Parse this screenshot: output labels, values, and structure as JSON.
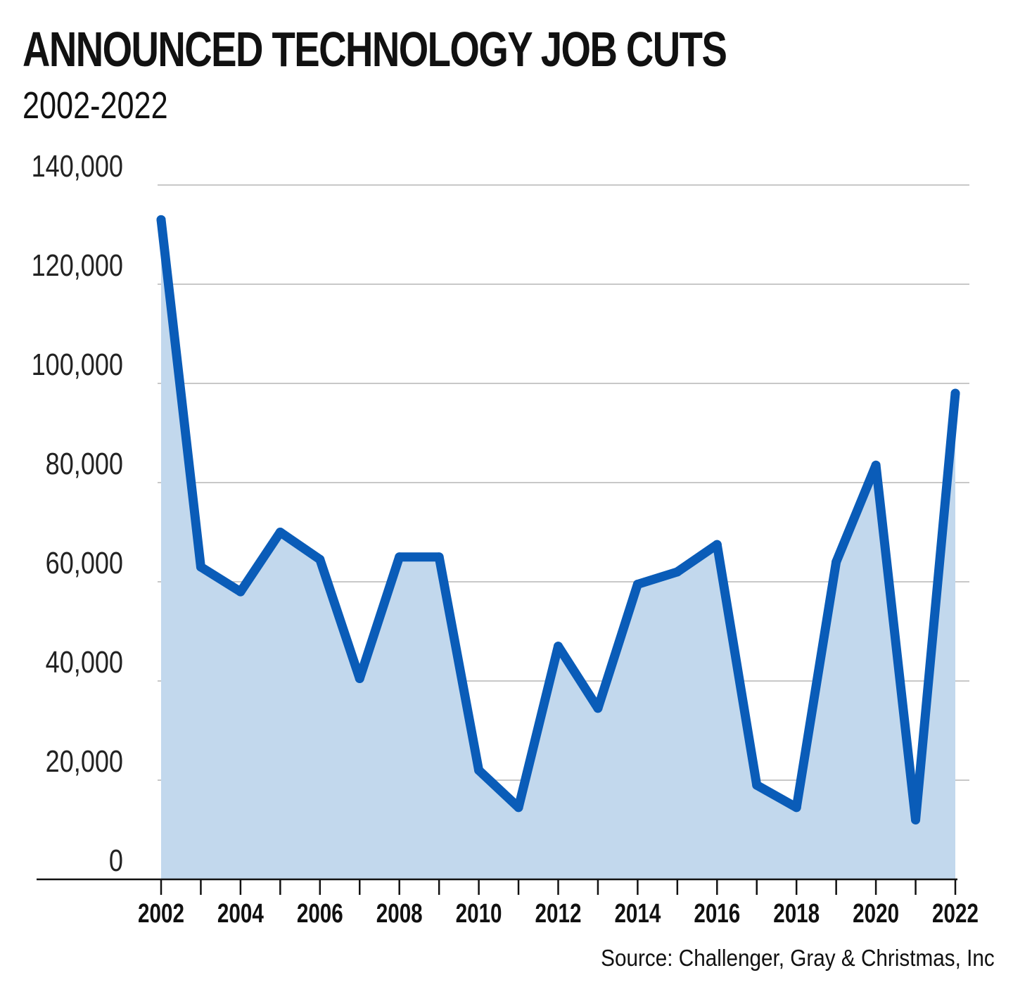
{
  "header": {
    "title": "ANNOUNCED TECHNOLOGY JOB CUTS",
    "subtitle": "2002-2022"
  },
  "footer": {
    "source": "Source: Challenger, Gray & Christmas, Inc"
  },
  "colors": {
    "line": "#0a5cb8",
    "area": "#c2d8ed",
    "grid": "#c8c8c8",
    "axis": "#111111"
  },
  "chart_data": {
    "type": "area",
    "title": "ANNOUNCED TECHNOLOGY JOB CUTS",
    "subtitle": "2002-2022",
    "xlabel": "",
    "ylabel": "",
    "x": [
      2002,
      2003,
      2004,
      2005,
      2006,
      2007,
      2008,
      2009,
      2010,
      2011,
      2012,
      2013,
      2014,
      2015,
      2016,
      2017,
      2018,
      2019,
      2020,
      2021,
      2022
    ],
    "series": [
      {
        "values": [
          133000,
          63000,
          58000,
          70000,
          64500,
          40500,
          65000,
          65000,
          22000,
          14500,
          47000,
          34500,
          59500,
          62000,
          67500,
          19000,
          14500,
          64000,
          83500,
          12000,
          98000
        ]
      }
    ],
    "xticks": [
      "2002",
      "2004",
      "2006",
      "2008",
      "2010",
      "2012",
      "2014",
      "2016",
      "2018",
      "2020",
      "2022"
    ],
    "yticks": [
      "0",
      "20,000",
      "40,000",
      "60,000",
      "80,000",
      "100,000",
      "120,000",
      "140,000"
    ],
    "ylim": [
      0,
      140000
    ],
    "xlim": [
      2002,
      2022
    ],
    "grid": true,
    "legend": "none"
  }
}
